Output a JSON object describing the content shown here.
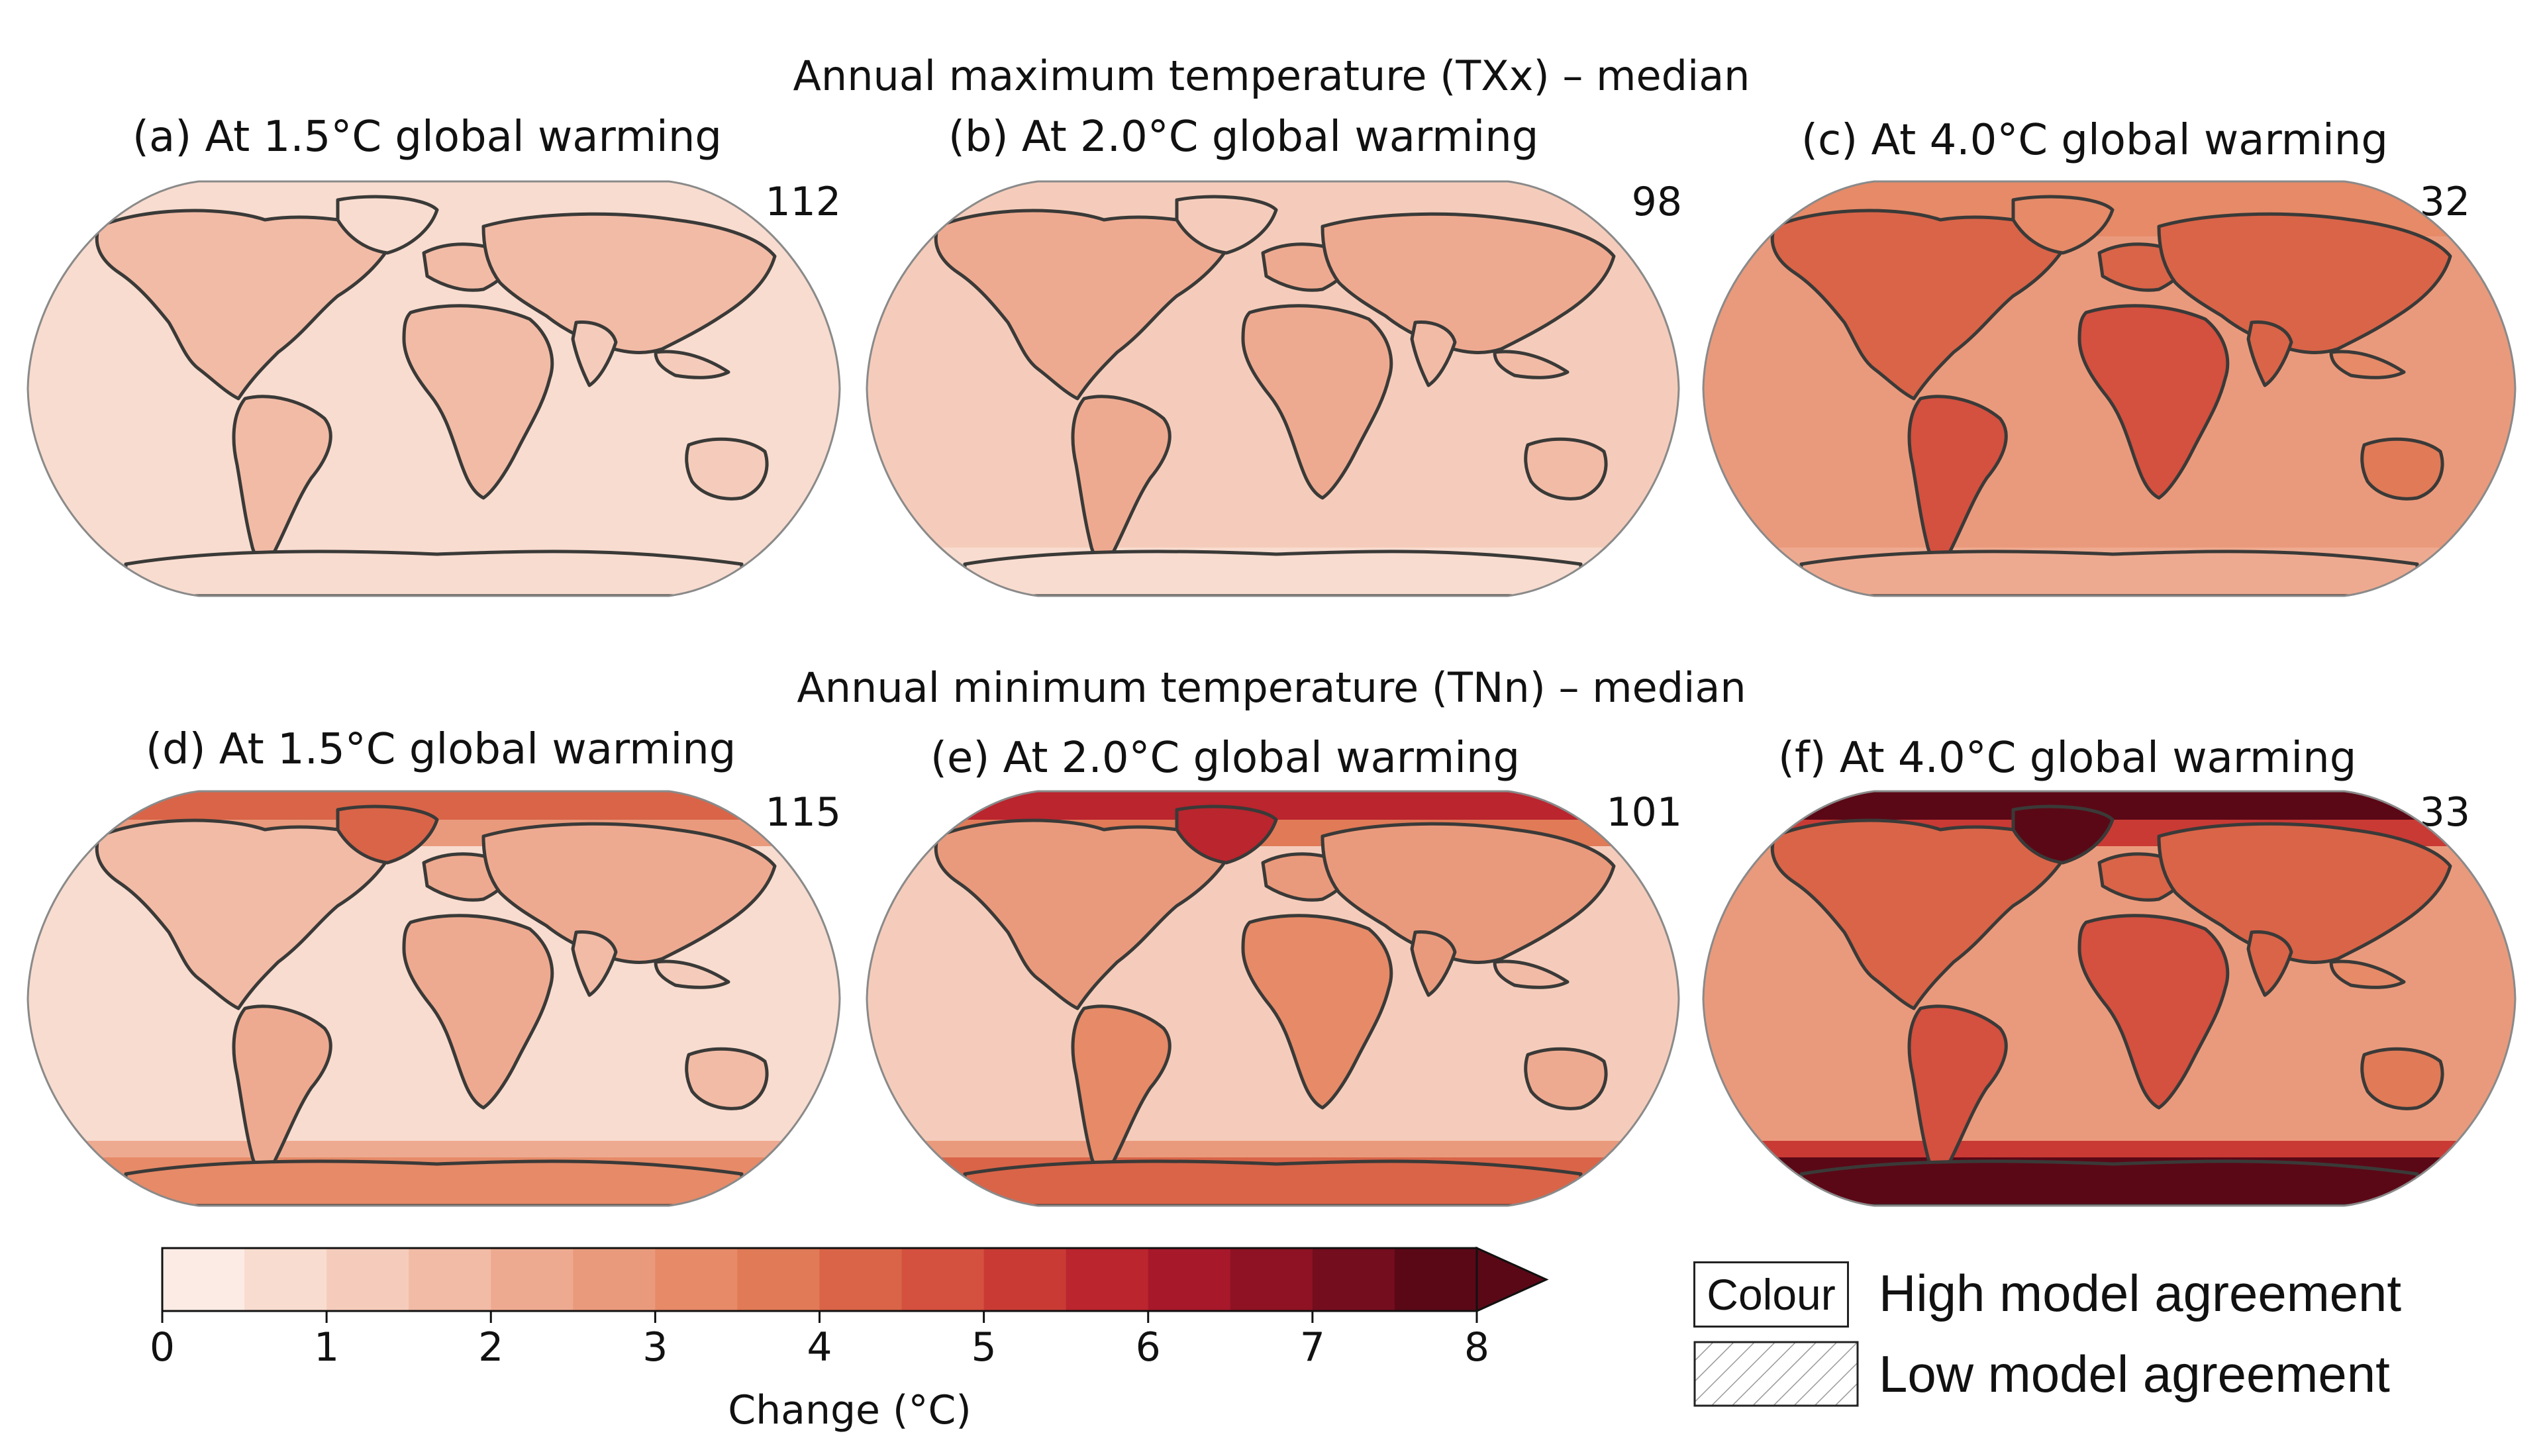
{
  "rows": [
    {
      "title": "Annual maximum temperature (TXx) – median"
    },
    {
      "title": "Annual minimum temperature (TNn) – median"
    }
  ],
  "panels": [
    {
      "label": "(a)",
      "title": "At 1.5°C global warming",
      "count": "112",
      "base_level": 1,
      "hot_level": 3,
      "arctic_level": 1,
      "antarctic_level": 1
    },
    {
      "label": "(b)",
      "title": "At 2.0°C global warming",
      "count": "98",
      "base_level": 2,
      "hot_level": 4,
      "arctic_level": 2,
      "antarctic_level": 1
    },
    {
      "label": "(c)",
      "title": "At 4.0°C global warming",
      "count": "32",
      "base_level": 5,
      "hot_level": 9,
      "arctic_level": 6,
      "antarctic_level": 4
    },
    {
      "label": "(d)",
      "title": "At 1.5°C global warming",
      "count": "115",
      "base_level": 1,
      "hot_level": 4,
      "arctic_level": 8,
      "antarctic_level": 6
    },
    {
      "label": "(e)",
      "title": "At 2.0°C global warming",
      "count": "101",
      "base_level": 2,
      "hot_level": 6,
      "arctic_level": 11,
      "antarctic_level": 8
    },
    {
      "label": "(f)",
      "title": "At 4.0°C global warming",
      "count": "33",
      "base_level": 5,
      "hot_level": 9,
      "arctic_level": 15,
      "antarctic_level": 15
    }
  ],
  "colorbar": {
    "label": "Change (°C)",
    "ticks": [
      "0",
      "1",
      "2",
      "3",
      "4",
      "5",
      "6",
      "7",
      "8"
    ],
    "range": [
      0,
      8
    ],
    "step": 0.5,
    "extend": "max",
    "colors": [
      "#fcebe4",
      "#f8dccf",
      "#f5ccbb",
      "#f2bba6",
      "#eeaa90",
      "#ea9a7c",
      "#e68a68",
      "#e07a57",
      "#d96448",
      "#d4503f",
      "#c93a35",
      "#ba252e",
      "#a6182a",
      "#8e1224",
      "#740d1e",
      "#5a0816"
    ]
  },
  "legend": {
    "items": [
      {
        "swatch_text": "Colour",
        "label": "High model agreement"
      },
      {
        "swatch_text": "",
        "label": "Low model agreement"
      }
    ]
  }
}
